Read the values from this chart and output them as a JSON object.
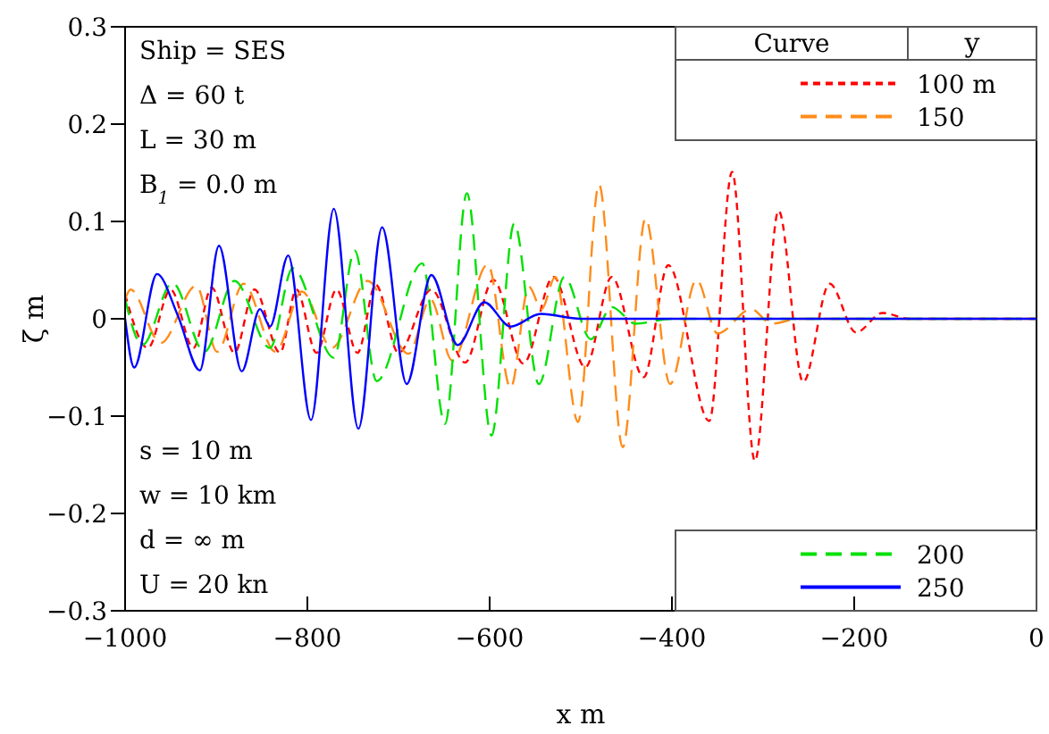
{
  "chart_data": {
    "type": "line",
    "xlabel": "x m",
    "ylabel": "ζ m",
    "legend_title": "Curve",
    "annotations": [
      "Ship = SES",
      "Δ = 60 t",
      "L = 30 m",
      "B$_{1}$ = 0.0 m",
      "s = 10 m",
      "w = 10 km",
      "d = ∞ m",
      "U = 20 kn",
      "y"
    ],
    "xlim": [
      -1000,
      0
    ],
    "xticks": [
      -1000,
      -800,
      -600,
      -400,
      -200,
      0
    ],
    "ylim": [
      -0.3,
      0.3
    ],
    "yticks": [
      -0.3,
      -0.2,
      -0.1,
      0,
      0.1,
      0.2,
      0.3
    ],
    "legend": "right",
    "marker": "none",
    "series": [
      {
        "name": "100 m",
        "color": "#ff0000",
        "line_style": "dotted",
        "x": [
          -1000,
          -975,
          -950,
          -925,
          -905,
          -880,
          -858,
          -830,
          -812,
          -790,
          -768,
          -745,
          -725,
          -700,
          -664,
          -627,
          -596,
          -563,
          -530,
          -495,
          -466,
          -431,
          -404,
          -359,
          -334,
          -309,
          -283,
          -256,
          -227,
          -198,
          -169,
          -140,
          0
        ],
        "values": [
          0.025,
          -0.03,
          0.03,
          -0.03,
          0.032,
          -0.035,
          0.03,
          -0.035,
          0.03,
          -0.035,
          0.03,
          -0.035,
          0.035,
          -0.035,
          0.03,
          -0.045,
          0.04,
          -0.046,
          0.043,
          -0.05,
          0.043,
          -0.06,
          0.055,
          -0.105,
          0.151,
          -0.146,
          0.111,
          -0.065,
          0.036,
          -0.014,
          0.006,
          0,
          0
        ]
      },
      {
        "name": "150",
        "color": "#ff8c1a",
        "line_style": "dashed",
        "x": [
          -1000,
          -994,
          -961,
          -922,
          -899,
          -870,
          -835,
          -806,
          -773,
          -734,
          -689,
          -665,
          -641,
          -602,
          -577,
          -557,
          -543,
          -528,
          -503,
          -480,
          -454,
          -429,
          -402,
          -373,
          -350,
          -313,
          -291,
          -260,
          0
        ],
        "values": [
          0.02,
          0.03,
          -0.025,
          0.034,
          -0.034,
          0.036,
          -0.034,
          0.028,
          -0.03,
          0.039,
          -0.036,
          0.02,
          -0.043,
          0.056,
          -0.071,
          0.033,
          0.01,
          0.043,
          -0.106,
          0.138,
          -0.132,
          0.103,
          -0.067,
          0.04,
          -0.015,
          0.01,
          -0.005,
          0,
          0
        ]
      },
      {
        "name": "200",
        "color": "#00e000",
        "line_style": "dashed",
        "x": [
          -1000,
          -981,
          -948,
          -913,
          -880,
          -841,
          -816,
          -771,
          -748,
          -724,
          -674,
          -649,
          -625,
          -598,
          -573,
          -546,
          -518,
          -489,
          -466,
          -440,
          -400,
          0
        ],
        "values": [
          0.02,
          -0.027,
          0.037,
          -0.034,
          0.039,
          -0.03,
          0.052,
          -0.04,
          0.07,
          -0.064,
          0.057,
          -0.108,
          0.129,
          -0.12,
          0.098,
          -0.067,
          0.043,
          -0.021,
          0.012,
          -0.005,
          0,
          0
        ]
      },
      {
        "name": "250",
        "color": "#0000ff",
        "line_style": "solid",
        "x": [
          -1000,
          -990,
          -965,
          -942,
          -918,
          -897,
          -872,
          -852,
          -841,
          -821,
          -796,
          -771,
          -744,
          -718,
          -691,
          -664,
          -635,
          -606,
          -577,
          -544,
          -500,
          0
        ],
        "values": [
          0,
          -0.05,
          0.046,
          0.003,
          -0.053,
          0.075,
          -0.054,
          0.01,
          -0.008,
          0.065,
          -0.104,
          0.113,
          -0.113,
          0.094,
          -0.067,
          0.045,
          -0.027,
          0.017,
          -0.008,
          0.005,
          0,
          0
        ]
      }
    ]
  }
}
